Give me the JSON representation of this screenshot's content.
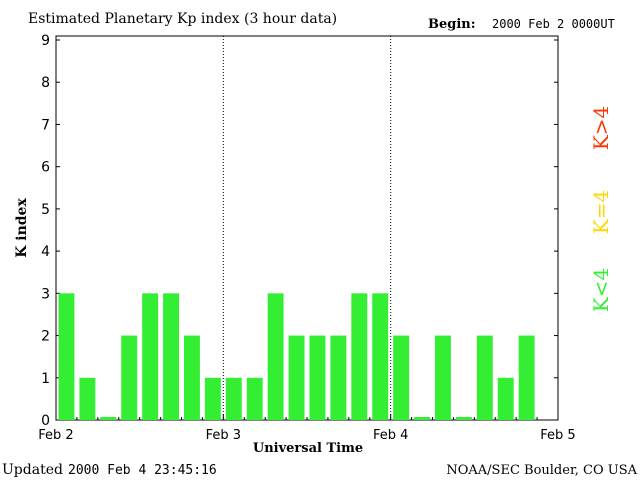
{
  "header": {
    "title": "Estimated Planetary Kp index (3 hour data)",
    "begin_label": "Begin:",
    "begin_value": "2000 Feb 2 0000UT"
  },
  "footer": {
    "updated_label": "Updated",
    "updated_value": "2000 Feb  4 23:45:16",
    "source": "NOAA/SEC Boulder, CO USA"
  },
  "legend": [
    {
      "label": "K<4",
      "color": "#33ee33"
    },
    {
      "label": "K=4",
      "color": "#ffd700"
    },
    {
      "label": "K>4",
      "color": "#ff3300"
    }
  ],
  "chart_data": {
    "type": "bar",
    "title": "Estimated Planetary Kp index (3 hour data)",
    "xlabel": "Universal Time",
    "ylabel": "K index",
    "ylim": [
      0,
      9
    ],
    "yticks": [
      "0",
      "1",
      "2",
      "3",
      "4",
      "5",
      "6",
      "7",
      "8",
      "9"
    ],
    "xticks": [
      "Feb 2",
      "Feb 3",
      "Feb 4",
      "Feb 5"
    ],
    "interval_hours": 3,
    "values": [
      3,
      1,
      0,
      2,
      3,
      3,
      2,
      1,
      1,
      1,
      3,
      2,
      2,
      2,
      3,
      3,
      2,
      0,
      2,
      0,
      2,
      1,
      2
    ],
    "bar_color": "#33ee33",
    "day_separators": "dotted"
  }
}
